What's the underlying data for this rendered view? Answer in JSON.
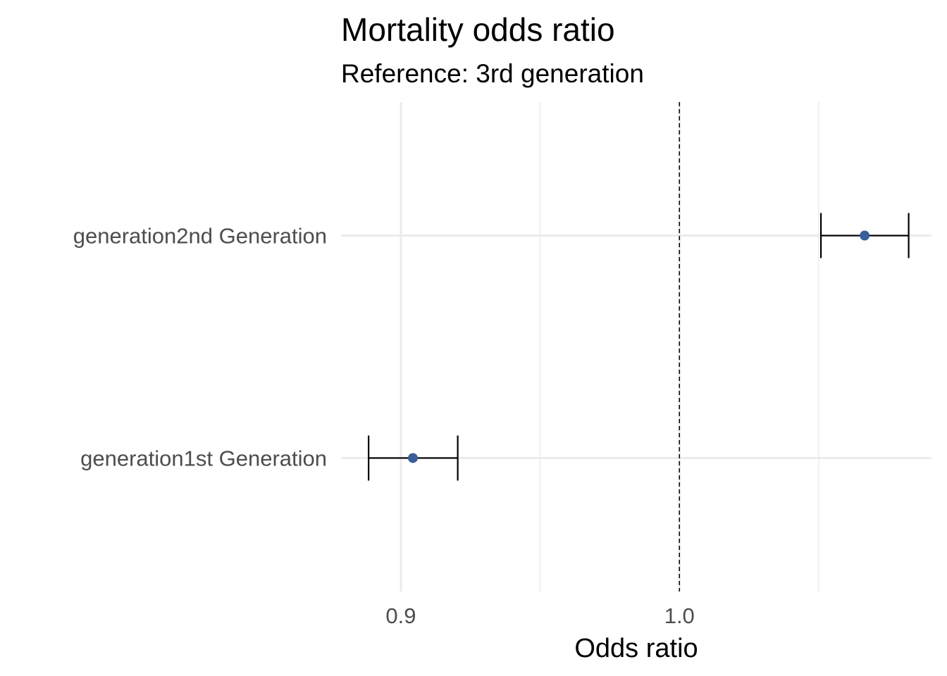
{
  "chart_data": {
    "type": "scatter",
    "title": "Mortality odds ratio",
    "subtitle": "Reference: 3rd generation",
    "xlabel": "Odds ratio",
    "ylabel": "",
    "xlim": [
      0.8785,
      1.0905
    ],
    "x_ticks": [
      0.9,
      1.0
    ],
    "x_tick_labels": [
      "0.9",
      "1.0"
    ],
    "x_minor_ticks": [
      0.95,
      1.05
    ],
    "reference_line": 1.0,
    "grid": true,
    "categories": [
      "generation1st Generation",
      "generation2nd Generation"
    ],
    "points": [
      {
        "label": "generation1st Generation",
        "estimate": 0.9043,
        "ci_low": 0.8884,
        "ci_high": 0.9204
      },
      {
        "label": "generation2nd Generation",
        "estimate": 1.0665,
        "ci_low": 1.0508,
        "ci_high": 1.0823
      }
    ],
    "colors": {
      "point": "#3a5f98",
      "errorbar": "#000000",
      "grid": "#ebebeb",
      "reference_line": "#000000"
    }
  }
}
